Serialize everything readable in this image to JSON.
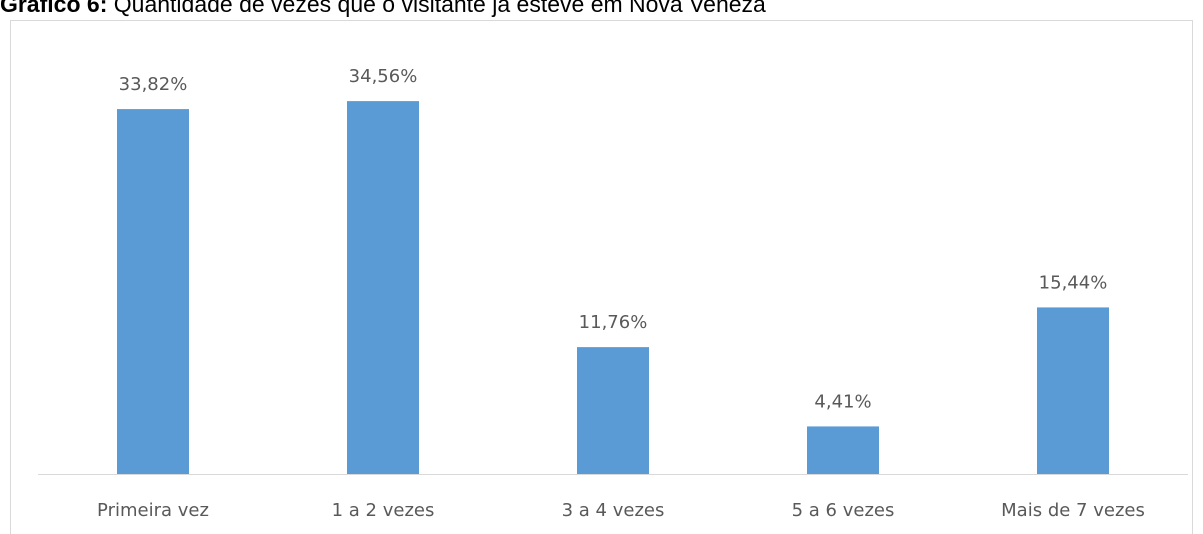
{
  "chart_data": {
    "type": "bar",
    "title_label": "Gráfico 6:",
    "title": "Quantidade de vezes que o visitante já esteve em Nova Veneza",
    "categories": [
      "Primeira vez",
      "1 a 2 vezes",
      "3 a 4 vezes",
      "5 a 6 vezes",
      "Mais de 7 vezes"
    ],
    "values": [
      33.82,
      34.56,
      11.76,
      4.41,
      15.44
    ],
    "value_labels": [
      "33,82%",
      "34,56%",
      "11,76%",
      "4,41%",
      "15,44%"
    ],
    "color": "#5b9bd5"
  }
}
